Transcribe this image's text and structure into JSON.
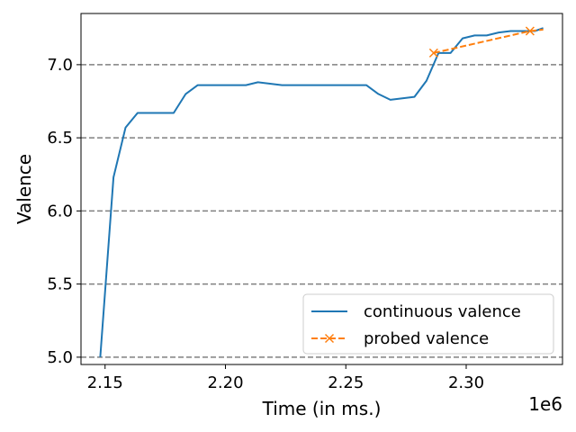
{
  "chart_data": {
    "type": "line",
    "title": "",
    "xlabel": "Time (in ms.)",
    "ylabel": "Valence",
    "x_offset_label": "1e6",
    "xlim": [
      2140000,
      2340000
    ],
    "ylim": [
      4.95,
      7.35
    ],
    "x_ticks": [
      2150000,
      2200000,
      2250000,
      2300000
    ],
    "x_tick_labels": [
      "2.15",
      "2.20",
      "2.25",
      "2.30"
    ],
    "y_ticks": [
      5.0,
      5.5,
      6.0,
      6.5,
      7.0
    ],
    "y_tick_labels": [
      "5.0",
      "5.5",
      "6.0",
      "6.5",
      "7.0"
    ],
    "grid": {
      "axis": "y",
      "style": "dashed",
      "color": "#808080"
    },
    "legend": {
      "placement": "lower-right"
    },
    "series": [
      {
        "name": "continuous valence",
        "color": "#1f77b4",
        "style": "solid",
        "marker": "none",
        "x": [
          2148000,
          2153500,
          2158500,
          2163500,
          2168500,
          2173500,
          2178500,
          2183500,
          2188500,
          2193500,
          2198500,
          2203500,
          2208500,
          2213500,
          2218500,
          2223500,
          2228500,
          2233500,
          2238500,
          2243500,
          2248500,
          2253500,
          2258500,
          2263500,
          2268500,
          2273500,
          2278500,
          2283500,
          2288500,
          2293500,
          2298500,
          2303500,
          2308500,
          2313500,
          2318500,
          2323500,
          2328500,
          2332000
        ],
        "y": [
          5.0,
          6.23,
          6.57,
          6.67,
          6.67,
          6.67,
          6.67,
          6.8,
          6.86,
          6.86,
          6.86,
          6.86,
          6.86,
          6.88,
          6.87,
          6.86,
          6.86,
          6.86,
          6.86,
          6.86,
          6.86,
          6.86,
          6.86,
          6.8,
          6.76,
          6.77,
          6.78,
          6.89,
          7.08,
          7.08,
          7.18,
          7.2,
          7.2,
          7.22,
          7.23,
          7.23,
          7.23,
          7.25
        ]
      },
      {
        "name": "probed valence",
        "color": "#ff7f0e",
        "style": "dashed",
        "marker": "x",
        "x": [
          2286500,
          2326500,
          2332000
        ],
        "y": [
          7.08,
          7.23,
          7.24
        ]
      }
    ]
  }
}
